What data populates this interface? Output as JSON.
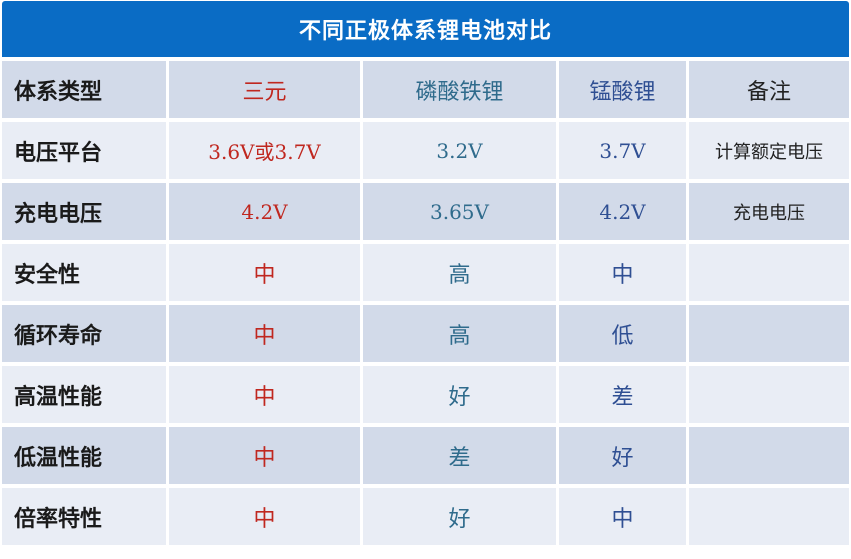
{
  "title": "不同正极体系锂电池对比",
  "colors": {
    "header_bg": "#0a6cc5",
    "row_dark": "#d2dae9",
    "row_light": "#e9edf5",
    "ternary_text": "#c0271f",
    "lfp_text": "#2f6b8c",
    "lmo_text": "#2f4f93"
  },
  "table": {
    "header": [
      "体系类型",
      "三元",
      "磷酸铁锂",
      "锰酸锂",
      "备注"
    ],
    "rows": [
      [
        "电压平台",
        "3.6V或3.7V",
        "3.2V",
        "3.7V",
        "计算额定电压"
      ],
      [
        "充电电压",
        "4.2V",
        "3.65V",
        "4.2V",
        "充电电压"
      ],
      [
        "安全性",
        "中",
        "高",
        "中",
        ""
      ],
      [
        "循环寿命",
        "中",
        "高",
        "低",
        ""
      ],
      [
        "高温性能",
        "中",
        "好",
        "差",
        ""
      ],
      [
        "低温性能",
        "中",
        "差",
        "好",
        ""
      ],
      [
        "倍率特性",
        "中",
        "好",
        "中",
        ""
      ]
    ]
  }
}
